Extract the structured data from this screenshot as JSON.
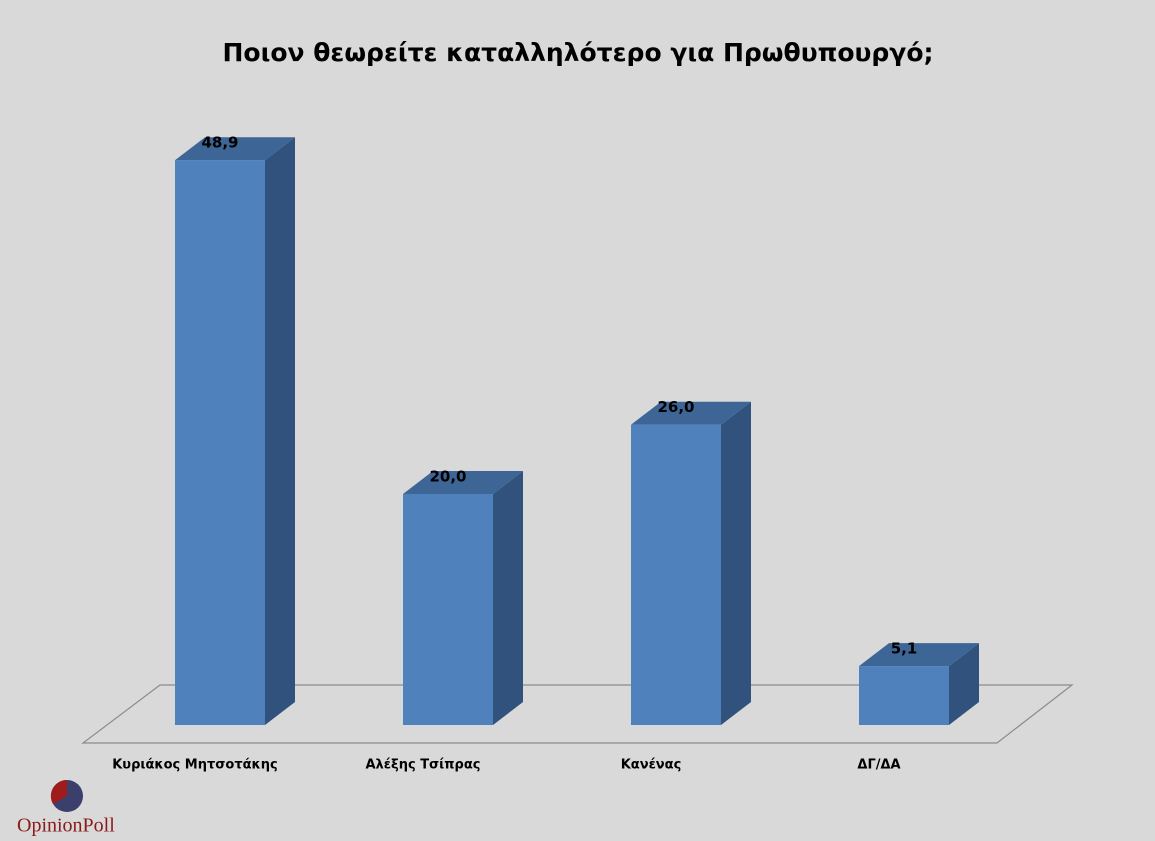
{
  "chart_data": {
    "type": "bar3d",
    "title": "Ποιον θεωρείτε καταλληλότερο για Πρωθυπουργό;",
    "categories": [
      "Κυριάκος Μητσοτάκης",
      "Αλέξης Τσίπρας",
      "Κανένας",
      "ΔΓ/ΔΑ"
    ],
    "values": [
      48.9,
      20.0,
      26.0,
      5.1
    ],
    "value_labels": [
      "48,9",
      "20,0",
      "26,0",
      "5,1"
    ],
    "color": "#4f81bd",
    "source": "OpinionPoll"
  }
}
